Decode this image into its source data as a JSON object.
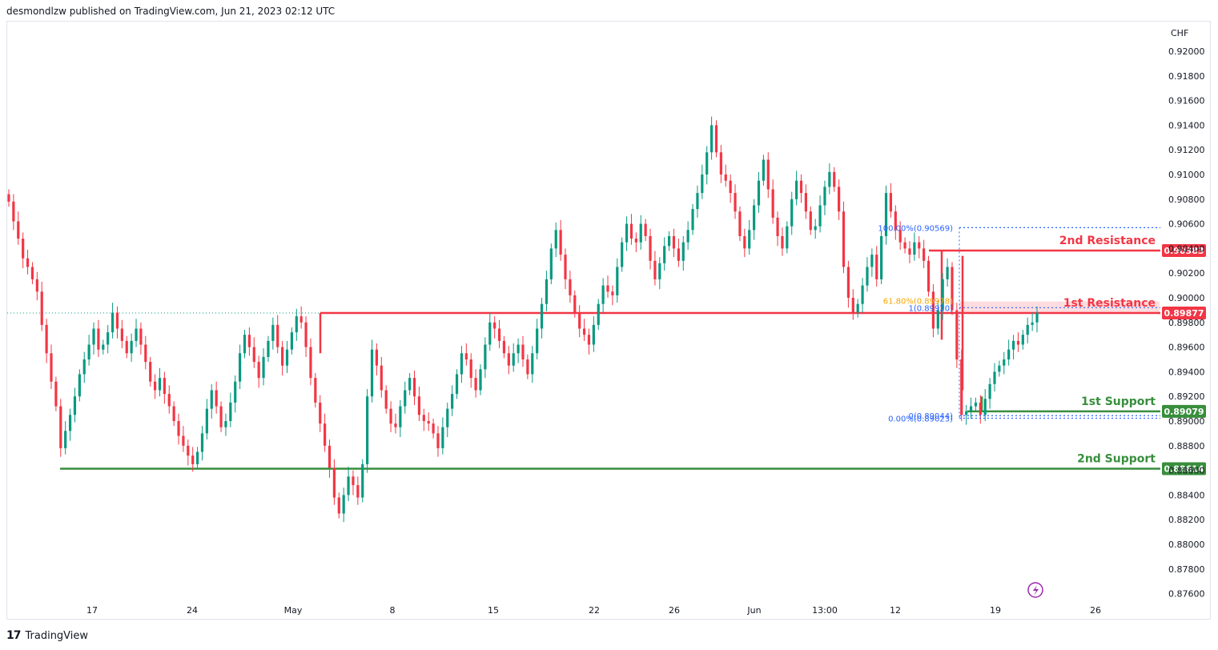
{
  "header": {
    "published": "desmondlzw published on TradingView.com, Jun 21, 2023 02:12 UTC"
  },
  "footer": {
    "brand": "TradingView",
    "logo": "17"
  },
  "colors": {
    "up": "#089981",
    "down": "#f23645",
    "resistance": "#f23645",
    "support": "#388e3c",
    "fib": "#2962ff",
    "fib_618": "#f7a600",
    "zone": "#ffcdd2"
  },
  "chart_data": {
    "type": "candlestick",
    "currency_label": "CHF",
    "y_ticks": [
      "0.92000",
      "0.91800",
      "0.91600",
      "0.91400",
      "0.91200",
      "0.91000",
      "0.90800",
      "0.90600",
      "0.90400",
      "0.90200",
      "0.90000",
      "0.89800",
      "0.89600",
      "0.89400",
      "0.89200",
      "0.89000",
      "0.88800",
      "0.88600",
      "0.88400",
      "0.88200",
      "0.88000",
      "0.87800",
      "0.87600"
    ],
    "ylim": [
      0.8748,
      0.9222
    ],
    "x_ticks": [
      "17",
      "24",
      "May",
      "8",
      "15",
      "22",
      "26",
      "Jun",
      "13:00",
      "12",
      "19",
      "26"
    ],
    "levels": [
      {
        "name": "2nd Resistance",
        "value": 0.90383,
        "label": "0.90383",
        "kind": "resistance"
      },
      {
        "name": "1st Resistance",
        "value": 0.89877,
        "label": "0.89877",
        "kind": "resistance"
      },
      {
        "name": "1st Support",
        "value": 0.89079,
        "label": "0.89079",
        "kind": "support"
      },
      {
        "name": "2nd Support",
        "value": 0.88614,
        "label": "0.88614",
        "kind": "support"
      }
    ],
    "last_price": "0.89877",
    "fib_labels": [
      {
        "text": "100.00%(0.90569)",
        "value": 0.90569
      },
      {
        "text": "61.80%(0.89978)",
        "value": 0.89978
      },
      {
        "text": "1(0.89920)",
        "value": 0.8992
      },
      {
        "text": "0(0.89044)",
        "value": 0.89044
      },
      {
        "text": "0.00%(0.89023)",
        "value": 0.89023
      }
    ],
    "series": [
      {
        "values": [
          0.9078,
          0.9062,
          0.9048,
          0.9032,
          0.9025,
          0.9015,
          0.9005,
          0.8978,
          0.8955,
          0.8932,
          0.8912,
          0.8878,
          0.8892,
          0.8905,
          0.892,
          0.8938,
          0.895,
          0.8962,
          0.8975,
          0.8958,
          0.8962,
          0.8972,
          0.8988,
          0.8975,
          0.8965,
          0.8955,
          0.8965,
          0.8975,
          0.8962,
          0.8948,
          0.8932,
          0.8925,
          0.8935,
          0.8922,
          0.8912,
          0.89,
          0.8888,
          0.888,
          0.8872,
          0.8865,
          0.8875,
          0.889,
          0.891,
          0.8925,
          0.8912,
          0.8895,
          0.89,
          0.8915,
          0.8932,
          0.8955,
          0.897,
          0.896,
          0.8948,
          0.8935,
          0.8952,
          0.8965,
          0.8978,
          0.896,
          0.8945,
          0.8958,
          0.8972,
          0.8985,
          0.898,
          0.896,
          0.8935,
          0.8915,
          0.8898,
          0.888,
          0.8862,
          0.8838,
          0.8825,
          0.884,
          0.8855,
          0.8848,
          0.8838,
          0.8865,
          0.892,
          0.8958,
          0.8945,
          0.8925,
          0.891,
          0.8898,
          0.8895,
          0.8912,
          0.8925,
          0.8935,
          0.892,
          0.8905,
          0.89,
          0.8898,
          0.889,
          0.8878,
          0.8895,
          0.891,
          0.8922,
          0.8938,
          0.8955,
          0.895,
          0.8935,
          0.8925,
          0.8942,
          0.8962,
          0.898,
          0.8975,
          0.8965,
          0.8955,
          0.8945,
          0.8955,
          0.8962,
          0.895,
          0.8938,
          0.8955,
          0.8975,
          0.8995,
          0.9015,
          0.904,
          0.9055,
          0.9035,
          0.9015,
          0.9002,
          0.8988,
          0.8975,
          0.897,
          0.8962,
          0.8978,
          0.8995,
          0.901,
          0.9005,
          0.9002,
          0.9025,
          0.9045,
          0.906,
          0.9048,
          0.9045,
          0.906,
          0.905,
          0.903,
          0.9015,
          0.9028,
          0.9042,
          0.905,
          0.904,
          0.903,
          0.9045,
          0.9055,
          0.9072,
          0.9085,
          0.91,
          0.9118,
          0.914,
          0.9118,
          0.91,
          0.9095,
          0.9085,
          0.907,
          0.905,
          0.904,
          0.9055,
          0.9075,
          0.9095,
          0.9112,
          0.9088,
          0.9065,
          0.905,
          0.904,
          0.9058,
          0.908,
          0.9095,
          0.9085,
          0.907,
          0.9055,
          0.9058,
          0.9075,
          0.909,
          0.9102,
          0.909,
          0.907,
          0.9025,
          0.9,
          0.8988,
          0.8995,
          0.901,
          0.9025,
          0.9035,
          0.9015,
          0.905,
          0.9085,
          0.907,
          0.9055,
          0.9045,
          0.904,
          0.9035,
          0.9045,
          0.904,
          0.903,
          0.9005,
          0.8975,
          0.899,
          0.9015,
          0.9025,
          0.899,
          0.895,
          0.8905,
          0.8908,
          0.8912,
          0.8915,
          0.8905,
          0.8918,
          0.893,
          0.894,
          0.8945,
          0.895,
          0.8958,
          0.8965,
          0.8962,
          0.897,
          0.8978,
          0.898,
          0.8988
        ]
      }
    ]
  },
  "icons": {
    "lightning": "lightning-icon"
  }
}
